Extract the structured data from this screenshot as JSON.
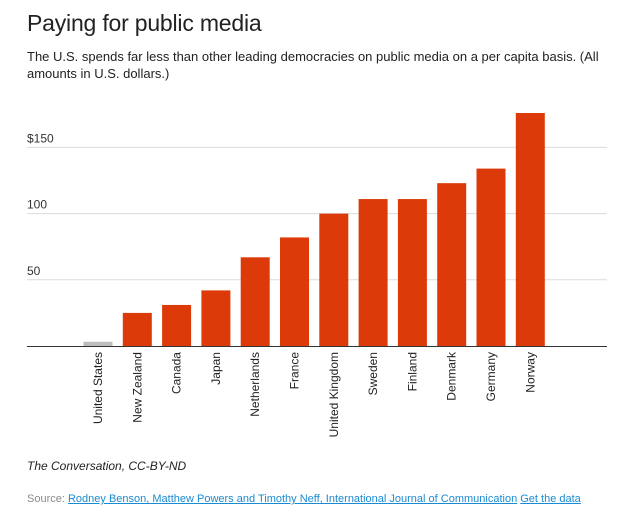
{
  "title": "Paying for public media",
  "subtitle": "The U.S. spends far less than other leading democracies on public media on a per capita basis. (All amounts in U.S. dollars.)",
  "credit": "The Conversation, CC-BY-ND",
  "source": {
    "label": "Source:",
    "link_text": "Rodney Benson, Matthew Powers and Timothy Neff, International Journal of Communication",
    "data_link_text": "Get the data"
  },
  "chart_data": {
    "type": "bar",
    "categories": [
      "United States",
      "New Zealand",
      "Canada",
      "Japan",
      "Netherlands",
      "France",
      "United Kingdom",
      "Sweden",
      "Finland",
      "Denmark",
      "Germany",
      "Norway"
    ],
    "values": [
      3.2,
      25,
      31,
      42,
      67,
      82,
      100,
      111,
      111,
      123,
      134,
      176
    ],
    "ylim": [
      0,
      176
    ],
    "yticks": [
      {
        "value": 50,
        "label": "50"
      },
      {
        "value": 100,
        "label": "100"
      },
      {
        "value": 150,
        "label": "$150"
      }
    ],
    "grid": true,
    "colors": {
      "default": "#dd3a0a",
      "highlight": "#bdbdbd"
    },
    "highlight_category": "United States"
  }
}
